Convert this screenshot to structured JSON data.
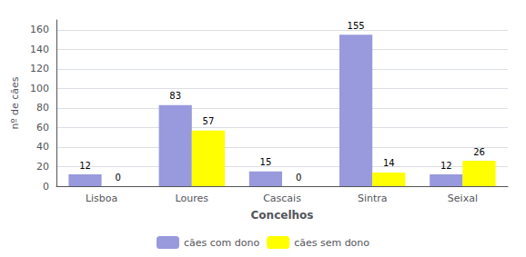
{
  "chart_data": {
    "type": "bar",
    "categories": [
      "Lisboa",
      "Loures",
      "Cascais",
      "Sintra",
      "Seixal"
    ],
    "series": [
      {
        "name": "cães com dono",
        "color": "#9999DD",
        "values": [
          12,
          83,
          15,
          155,
          12
        ]
      },
      {
        "name": "cães sem dono",
        "color": "#FFFF00",
        "values": [
          0,
          57,
          0,
          14,
          26
        ]
      }
    ],
    "xlabel": "Concelhos",
    "ylabel": "nº de cães",
    "ylim": [
      0,
      170
    ],
    "yticks": [
      0,
      20,
      40,
      60,
      80,
      100,
      120,
      140,
      160
    ],
    "grid": true,
    "legend": "bottom",
    "data_labels": true
  }
}
